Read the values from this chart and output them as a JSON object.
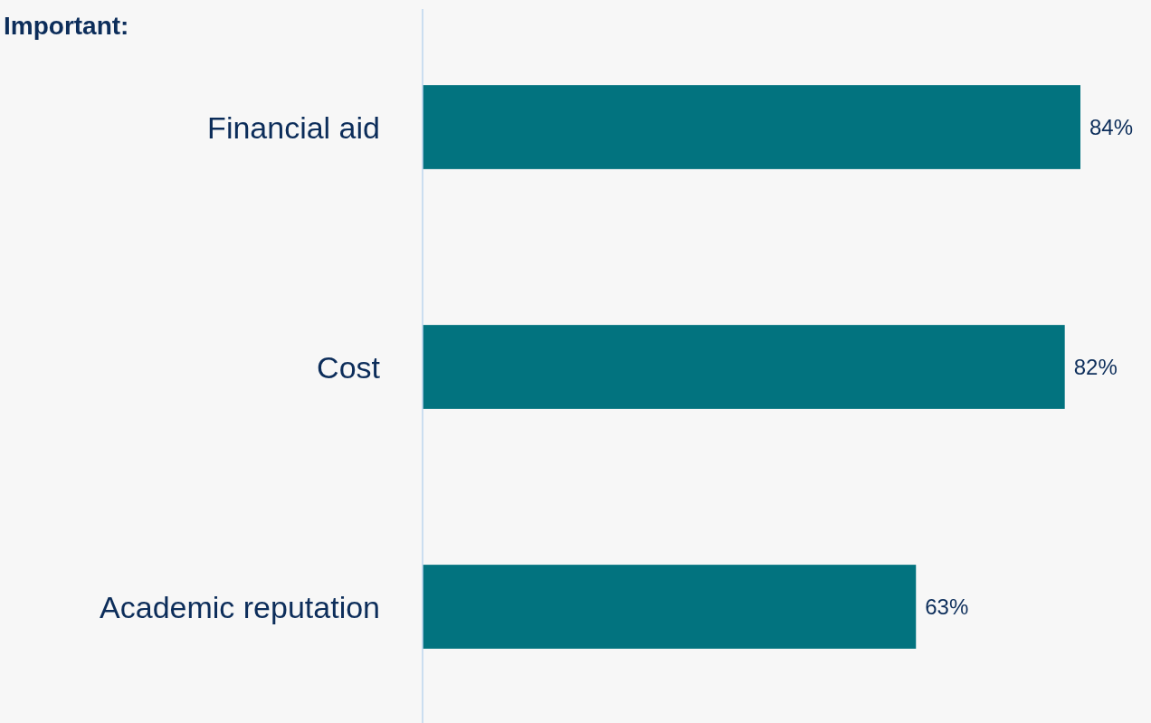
{
  "chart_data": {
    "type": "bar",
    "orientation": "horizontal",
    "title": "Important:",
    "categories": [
      "Financial aid",
      "Cost",
      "Academic reputation"
    ],
    "values": [
      84,
      82,
      63
    ],
    "value_labels": [
      "84%",
      "82%",
      "63%"
    ],
    "color": "#02737f"
  }
}
